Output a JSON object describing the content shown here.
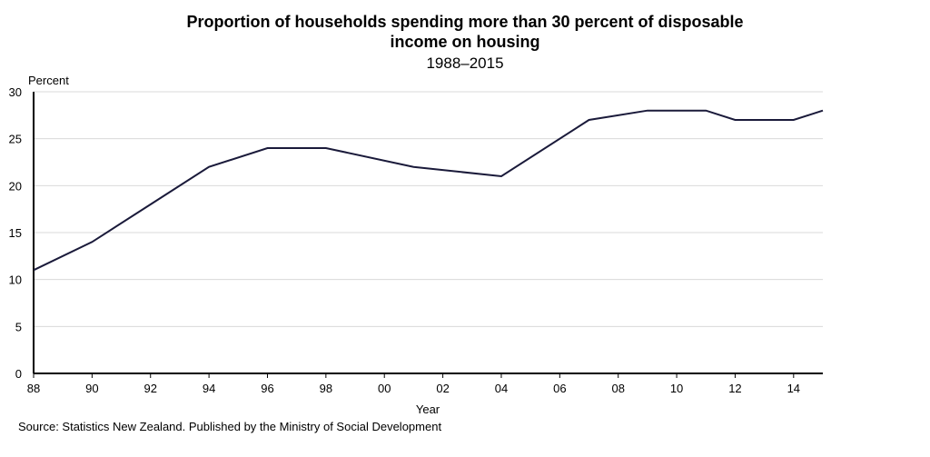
{
  "chart_data": {
    "type": "line",
    "title": "Proportion of households spending more than 30 percent of disposable income on housing",
    "title_lines": [
      "Proportion of households spending more than 30 percent of disposable",
      "income on housing"
    ],
    "subtitle": "1988–2015",
    "xlabel": "Year",
    "ylabel": "Percent",
    "source": "Source: Statistics New Zealand. Published  by the Ministry of Social Development",
    "xlim": [
      1988,
      2015
    ],
    "ylim": [
      0,
      30
    ],
    "x_ticks": [
      1988,
      1990,
      1992,
      1994,
      1996,
      1998,
      2000,
      2002,
      2004,
      2006,
      2008,
      2010,
      2012,
      2014
    ],
    "x_tick_labels": [
      "88",
      "90",
      "92",
      "94",
      "96",
      "98",
      "00",
      "02",
      "04",
      "06",
      "08",
      "10",
      "12",
      "14"
    ],
    "y_ticks": [
      0,
      5,
      10,
      15,
      20,
      25,
      30
    ],
    "y_tick_labels": [
      "0",
      "5",
      "10",
      "15",
      "20",
      "25",
      "30"
    ],
    "grid": "horizontal",
    "line_color": "#1a1a3a",
    "grid_color": "#d9d9d9",
    "series": [
      {
        "x": [
          1988,
          1990,
          1992,
          1994,
          1996,
          1998,
          2001,
          2004,
          2007,
          2009,
          2011,
          2012,
          2014,
          2015
        ],
        "values": [
          11,
          14,
          18,
          22,
          24,
          24,
          22,
          21,
          27,
          28,
          28,
          27,
          27,
          28
        ]
      }
    ]
  }
}
